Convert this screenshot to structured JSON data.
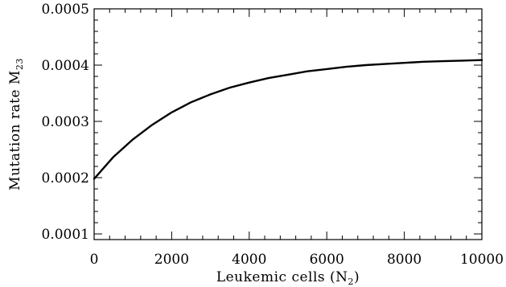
{
  "chart_data": {
    "type": "line",
    "title": "",
    "xlabel": {
      "main": "Leukemic cells (N",
      "sub": "2",
      "close": ")"
    },
    "ylabel": {
      "main": "Mutation rate M",
      "sub": "23"
    },
    "xlim": [
      0,
      10000
    ],
    "ylim": [
      9e-05,
      0.0005
    ],
    "x_ticks": [
      0,
      2000,
      4000,
      6000,
      8000,
      10000
    ],
    "x_tick_labels": [
      "0",
      "2000",
      "4000",
      "6000",
      "8000",
      "10000"
    ],
    "x_minor_step": 400,
    "y_ticks": [
      0.0001,
      0.0002,
      0.0003,
      0.0004,
      0.0005
    ],
    "y_tick_labels": [
      "0.0001",
      "0.0002",
      "0.0003",
      "0.0004",
      "0.0005"
    ],
    "y_minor_step": 2e-05,
    "grid": false,
    "legend": "none",
    "series": [
      {
        "x": [
          0,
          500,
          1000,
          1500,
          2000,
          2500,
          3000,
          3500,
          4000,
          4500,
          5000,
          5500,
          6000,
          6500,
          7000,
          7500,
          8000,
          8500,
          9000,
          9500,
          10000
        ],
        "y": [
          0.000198,
          0.000237,
          0.000268,
          0.000294,
          0.000316,
          0.000334,
          0.000348,
          0.00036,
          0.000369,
          0.000377,
          0.000383,
          0.000389,
          0.000393,
          0.000397,
          0.0004,
          0.000402,
          0.000404,
          0.000406,
          0.000407,
          0.000408,
          0.000409
        ]
      }
    ]
  }
}
